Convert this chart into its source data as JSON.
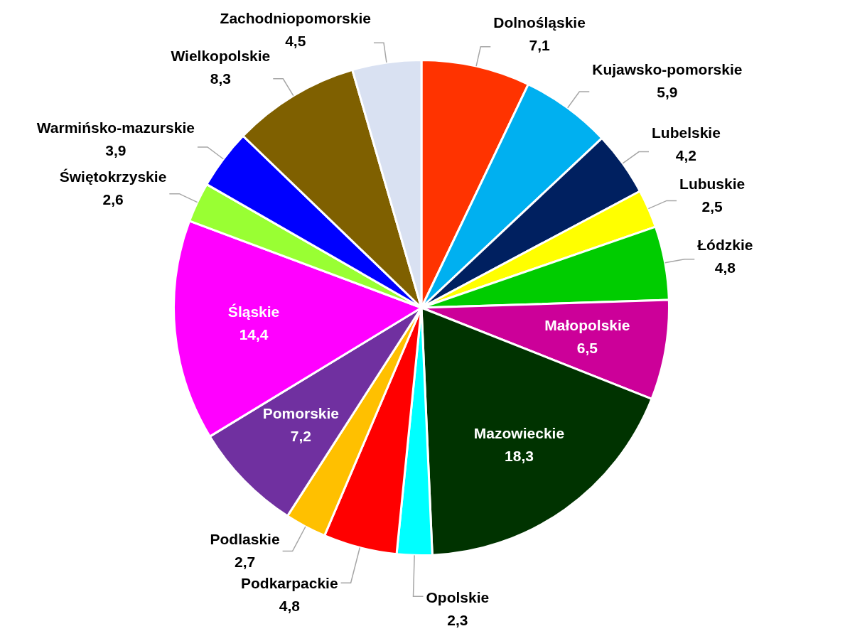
{
  "chart_data": {
    "type": "pie",
    "value_labels": [
      "7,1",
      "5,9",
      "4,2",
      "2,5",
      "4,8",
      "6,5",
      "18,3",
      "2,3",
      "4,8",
      "2,7",
      "7,2",
      "14,4",
      "2,6",
      "3,9",
      "8,3",
      "4,5"
    ],
    "categories": [
      "Dolnośląskie",
      "Kujawsko-pomorskie",
      "Lubelskie",
      "Lubuskie",
      "Łódzkie",
      "Małopolskie",
      "Mazowieckie",
      "Opolskie",
      "Podkarpackie",
      "Podlaskie",
      "Pomorskie",
      "Śląskie",
      "Świętokrzyskie",
      "Warmińsko-mazurskie",
      "Wielkopolskie",
      "Zachodniopomorskie"
    ],
    "values": [
      7.1,
      5.9,
      4.2,
      2.5,
      4.8,
      6.5,
      18.3,
      2.3,
      4.8,
      2.7,
      7.2,
      14.4,
      2.6,
      3.9,
      8.3,
      4.5
    ],
    "colors": [
      "#ff3300",
      "#00b0f0",
      "#002060",
      "#ffff00",
      "#00cc00",
      "#cc0099",
      "#003300",
      "#00ffff",
      "#ff0000",
      "#ffc000",
      "#7030a0",
      "#ff00ff",
      "#99ff33",
      "#0000ff",
      "#7f6000",
      "#d9e1f2"
    ]
  }
}
